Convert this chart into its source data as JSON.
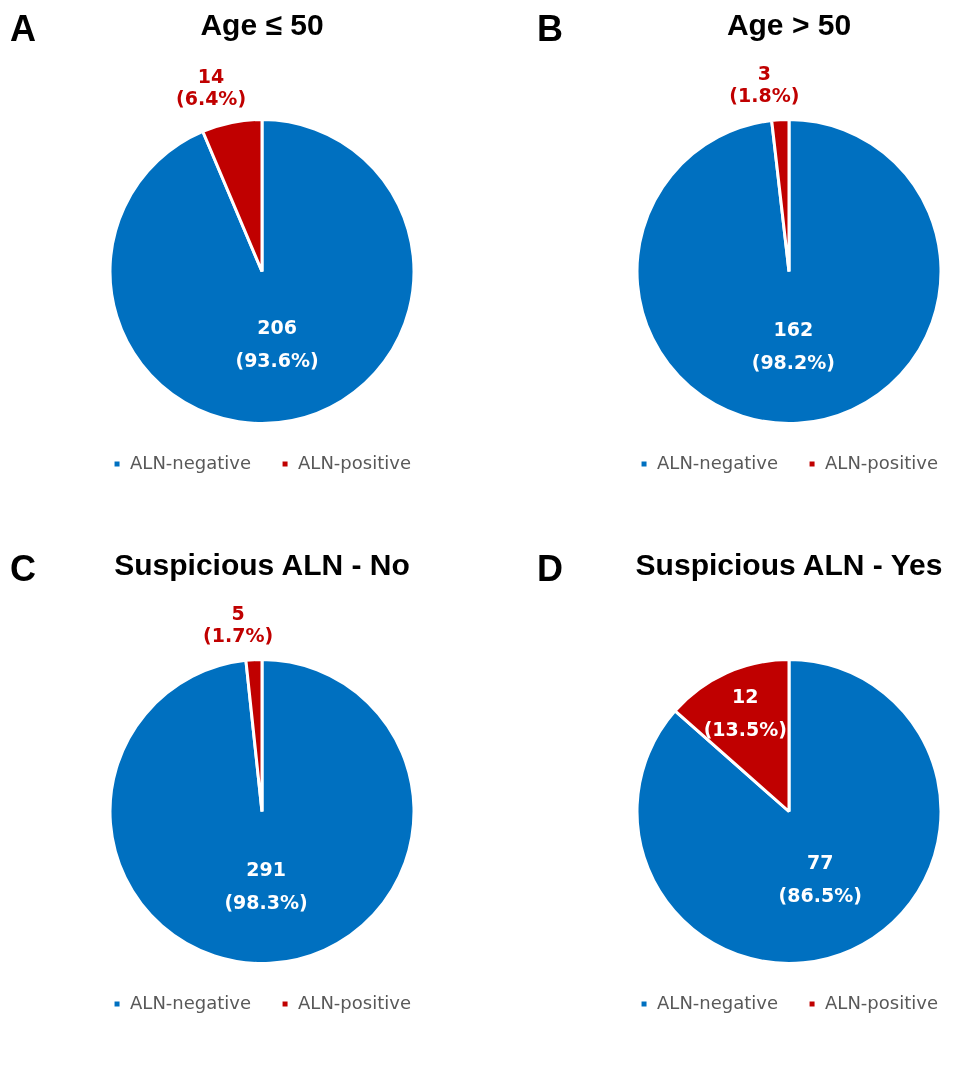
{
  "chart_data": [
    {
      "type": "pie",
      "title": "Age ≤ 50",
      "annotations": [
        "A"
      ],
      "categories": [
        "ALN-negative",
        "ALN-positive"
      ],
      "values": [
        206,
        14
      ],
      "colors": [
        "#0070c0",
        "#c00000"
      ],
      "value_labels": [
        "206\n(93.6%)",
        "14\n(6.4%)"
      ],
      "legend": "bottom"
    },
    {
      "type": "pie",
      "title": "Age > 50",
      "annotations": [
        "B"
      ],
      "categories": [
        "ALN-negative",
        "ALN-positive"
      ],
      "values": [
        162,
        3
      ],
      "colors": [
        "#0070c0",
        "#c00000"
      ],
      "value_labels": [
        "162\n(98.2%)",
        "3\n(1.8%)"
      ],
      "legend": "bottom"
    },
    {
      "type": "pie",
      "title": "Suspicious ALN - No",
      "annotations": [
        "C"
      ],
      "categories": [
        "ALN-negative",
        "ALN-positive"
      ],
      "values": [
        291,
        5
      ],
      "colors": [
        "#0070c0",
        "#c00000"
      ],
      "value_labels": [
        "291\n(98.3%)",
        "5\n(1.7%)"
      ],
      "legend": "bottom"
    },
    {
      "type": "pie",
      "title": "Suspicious ALN - Yes",
      "annotations": [
        "D"
      ],
      "categories": [
        "ALN-negative",
        "ALN-positive"
      ],
      "values": [
        77,
        12
      ],
      "colors": [
        "#0070c0",
        "#c00000"
      ],
      "value_labels": [
        "77\n(86.5%)",
        "12\n(13.5%)"
      ],
      "legend": "bottom"
    }
  ]
}
